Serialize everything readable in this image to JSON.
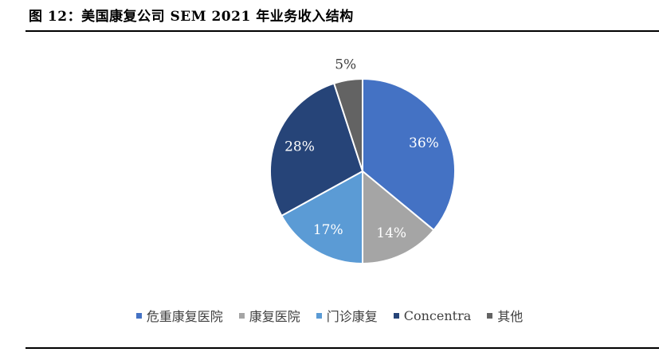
{
  "title": "图 12：美国康复公司 SEM 2021 年业务收入结构",
  "chart_data": {
    "type": "pie",
    "slices": [
      {
        "label": "危重康复医院",
        "value": 36,
        "display": "36%",
        "color": "#4472c4"
      },
      {
        "label": "康复医院",
        "value": 14,
        "display": "14%",
        "color": "#a5a5a5"
      },
      {
        "label": "门诊康复",
        "value": 17,
        "display": "17%",
        "color": "#5b9bd5"
      },
      {
        "label": "Concentra",
        "value": 28,
        "display": "28%",
        "color": "#264478"
      },
      {
        "label": "其他",
        "value": 5,
        "display": "5%",
        "color": "#636363"
      }
    ],
    "start": "12 o'clock",
    "direction": "clockwise",
    "legend_position": "bottom"
  }
}
